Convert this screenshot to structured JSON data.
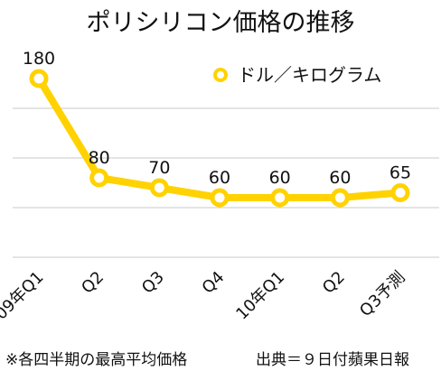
{
  "chart_data": {
    "type": "line",
    "title": "ポリシリコン価格の推移",
    "categories": [
      "09年Q1",
      "Q2",
      "Q3",
      "Q4",
      "10年Q1",
      "Q2",
      "Q3予測"
    ],
    "series": [
      {
        "name": "ドル／キログラム",
        "values": [
          180,
          80,
          70,
          60,
          60,
          60,
          65
        ]
      }
    ],
    "ylim": [
      0,
      200
    ],
    "grid": true,
    "legend_position": "top-right",
    "color": "#FFD200"
  },
  "footnotes": {
    "left": "※各四半期の最高平均価格",
    "right": "出典＝９日付蘋果日報"
  }
}
